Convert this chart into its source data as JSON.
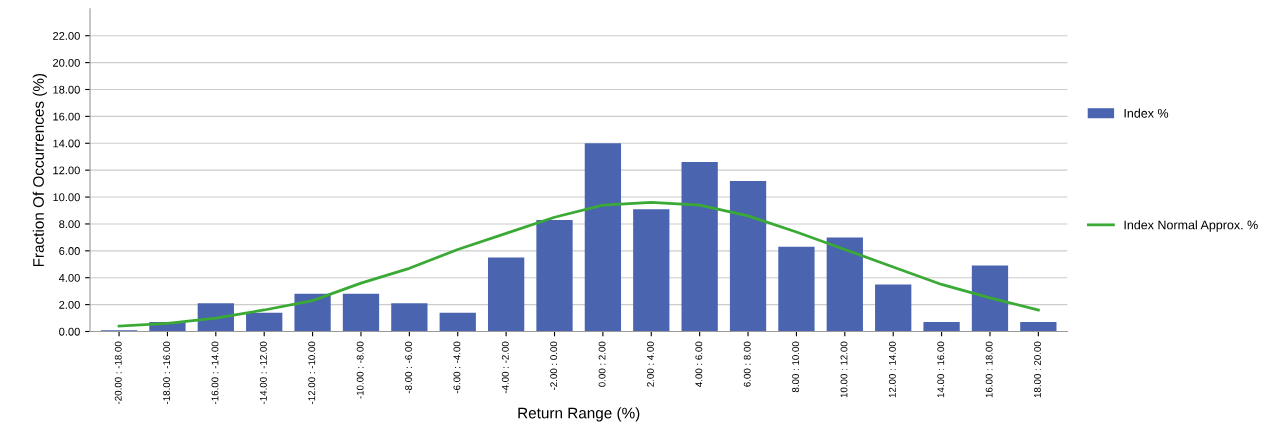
{
  "chart_data": {
    "type": "bar",
    "xlabel": "Return Range (%)",
    "ylabel": "Fraction Of Occurrences (%)",
    "categories": [
      "-20.00 : -18.00",
      "-18.00 : -16.00",
      "-16.00 : -14.00",
      "-14.00 : -12.00",
      "-12.00 : -10.00",
      "-10.00 : -8.00",
      "-8.00 : -6.00",
      "-6.00 : -4.00",
      "-4.00 : -2.00",
      "-2.00 : 0.00",
      "0.00 : 2.00",
      "2.00 : 4.00",
      "4.00 : 6.00",
      "6.00 : 8.00",
      "8.00 : 10.00",
      "10.00 : 12.00",
      "12.00 : 14.00",
      "14.00 : 16.00",
      "16.00 : 18.00",
      "18.00 : 20.00"
    ],
    "series": [
      {
        "name": "Index %",
        "color": "#4a64b0",
        "values": [
          0.1,
          0.7,
          2.1,
          1.4,
          2.8,
          2.8,
          2.1,
          1.4,
          5.5,
          8.3,
          14.0,
          9.1,
          12.6,
          11.2,
          6.3,
          7.0,
          3.5,
          0.7,
          4.9,
          0.7
        ]
      },
      {
        "name": "Index Normal Approx. %",
        "type": "line",
        "color": "#3aaa35",
        "values": [
          0.4,
          0.6,
          1.0,
          1.6,
          2.3,
          3.6,
          4.7,
          6.1,
          7.3,
          8.5,
          9.4,
          9.6,
          9.4,
          8.6,
          7.4,
          6.1,
          4.8,
          3.5,
          2.5,
          1.6
        ]
      }
    ],
    "ylim": [
      0,
      24
    ],
    "yticks": [
      {
        "value": 0,
        "label": "0.00"
      },
      {
        "value": 2,
        "label": "2.00"
      },
      {
        "value": 4,
        "label": "4.00"
      },
      {
        "value": 6,
        "label": "6.00"
      },
      {
        "value": 8,
        "label": "8.00"
      },
      {
        "value": 10,
        "label": "10.00"
      },
      {
        "value": 12,
        "label": "12.00"
      },
      {
        "value": 14,
        "label": "14.00"
      },
      {
        "value": 16,
        "label": "16.00"
      },
      {
        "value": 18,
        "label": "18.00"
      },
      {
        "value": 20,
        "label": "20.00"
      },
      {
        "value": 22,
        "label": "22.00"
      }
    ],
    "grid": "y",
    "legend": "right",
    "marker": "none",
    "line_style": "solid"
  }
}
